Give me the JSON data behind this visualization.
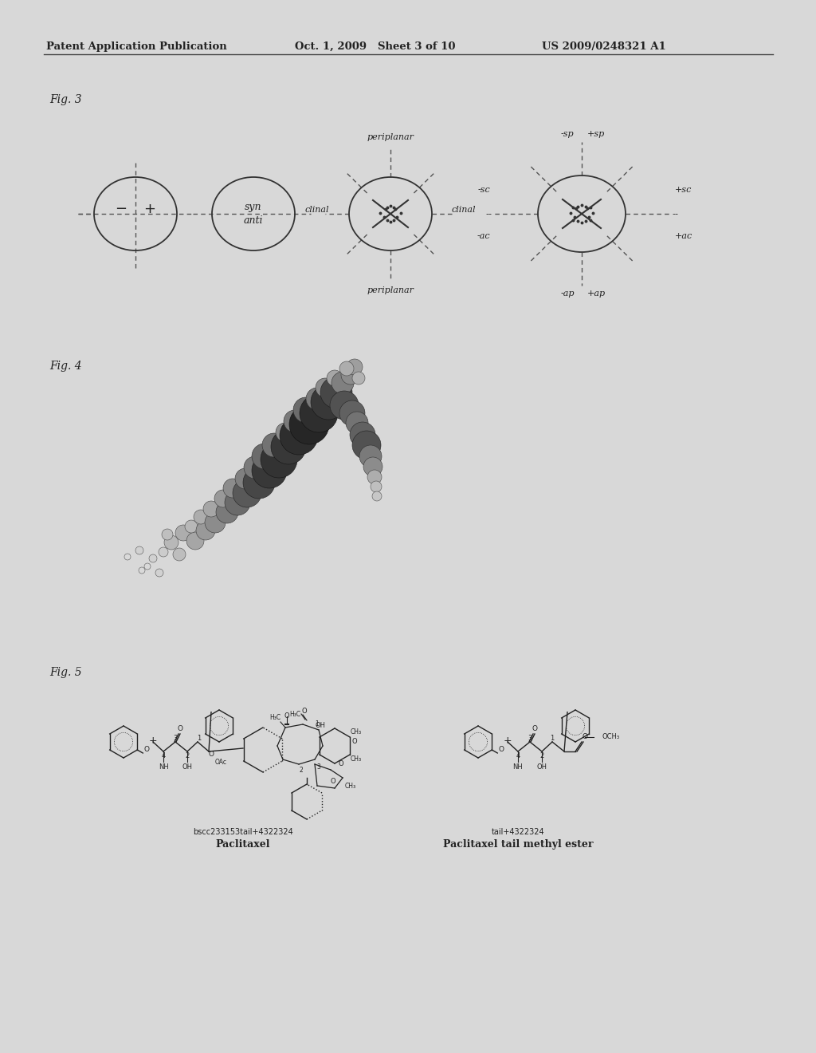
{
  "bg_color": "#d8d8d8",
  "fg_color": "#222222",
  "header_left": "Patent Application Publication",
  "header_center": "Oct. 1, 2009   Sheet 3 of 10",
  "header_right": "US 2009/0248321 A1",
  "fig3_label": "Fig. 3",
  "fig4_label": "Fig. 4",
  "fig5_label": "Fig. 5",
  "fig5_left_code": "bscc233153tail+4322324",
  "fig5_left_title": "Paclitaxel",
  "fig5_right_code": "tail+4322324",
  "fig5_right_title": "Paclitaxel tail methyl ester"
}
